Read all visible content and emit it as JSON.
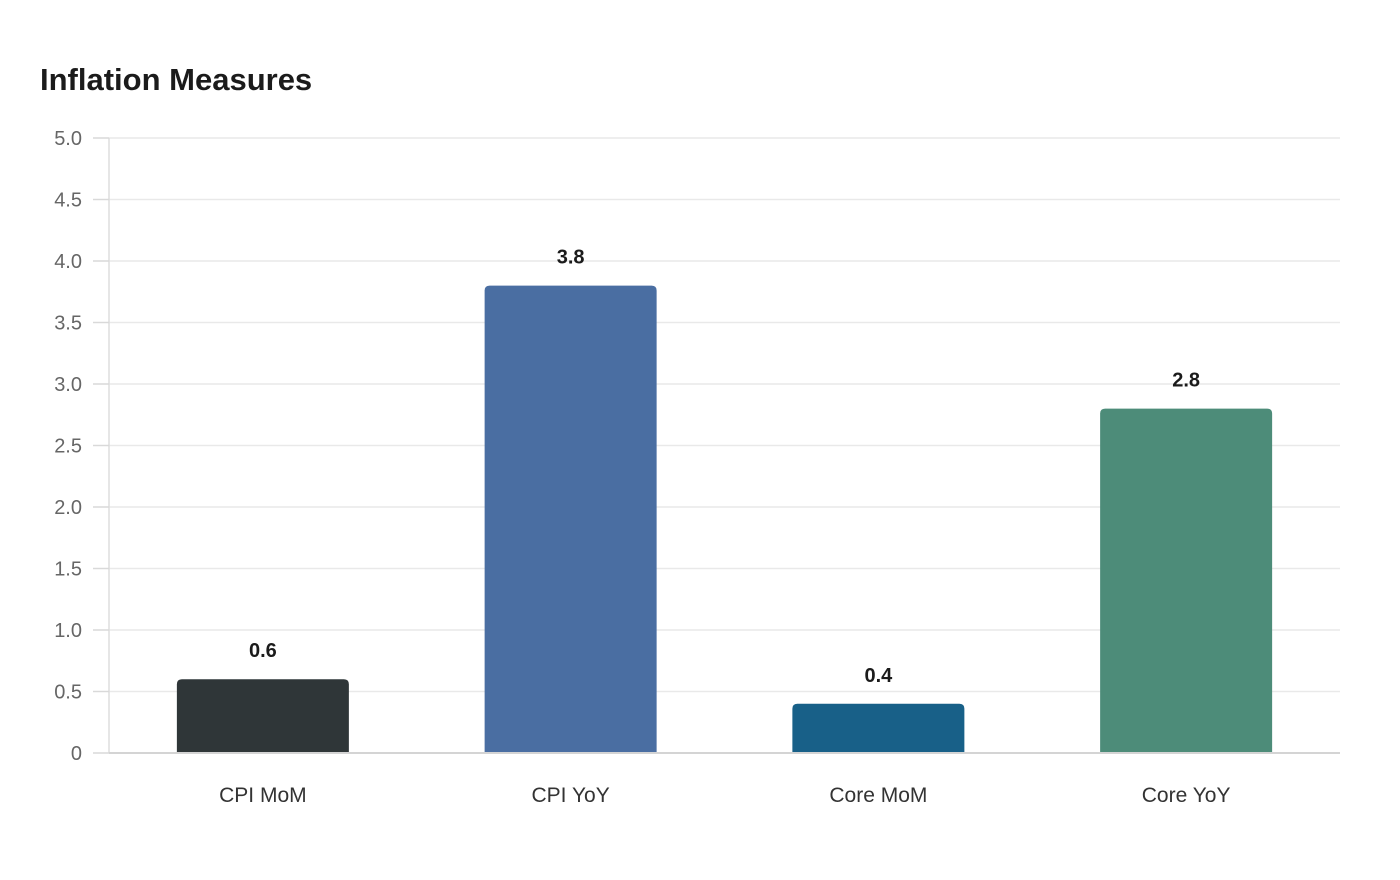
{
  "chart_data": {
    "type": "bar",
    "title": "Inflation Measures",
    "categories": [
      "CPI MoM",
      "CPI YoY",
      "Core MoM",
      "Core YoY"
    ],
    "values": [
      0.6,
      3.8,
      0.4,
      2.8
    ],
    "value_labels": [
      "0.6",
      "3.8",
      "0.4",
      "2.8"
    ],
    "colors": [
      "#2f3638",
      "#4a6ea2",
      "#186088",
      "#4d8c79"
    ],
    "ylim": [
      0,
      5
    ],
    "yticks": [
      0,
      0.5,
      1,
      1.5,
      2,
      2.5,
      3,
      3.5,
      4,
      4.5,
      5
    ],
    "ytick_labels": [
      "0",
      "0.5",
      "1.0",
      "1.5",
      "2.0",
      "2.5",
      "3.0",
      "3.5",
      "4.0",
      "4.5",
      "5.0"
    ],
    "grid": true,
    "legend": false,
    "xlabel": "",
    "ylabel": ""
  }
}
